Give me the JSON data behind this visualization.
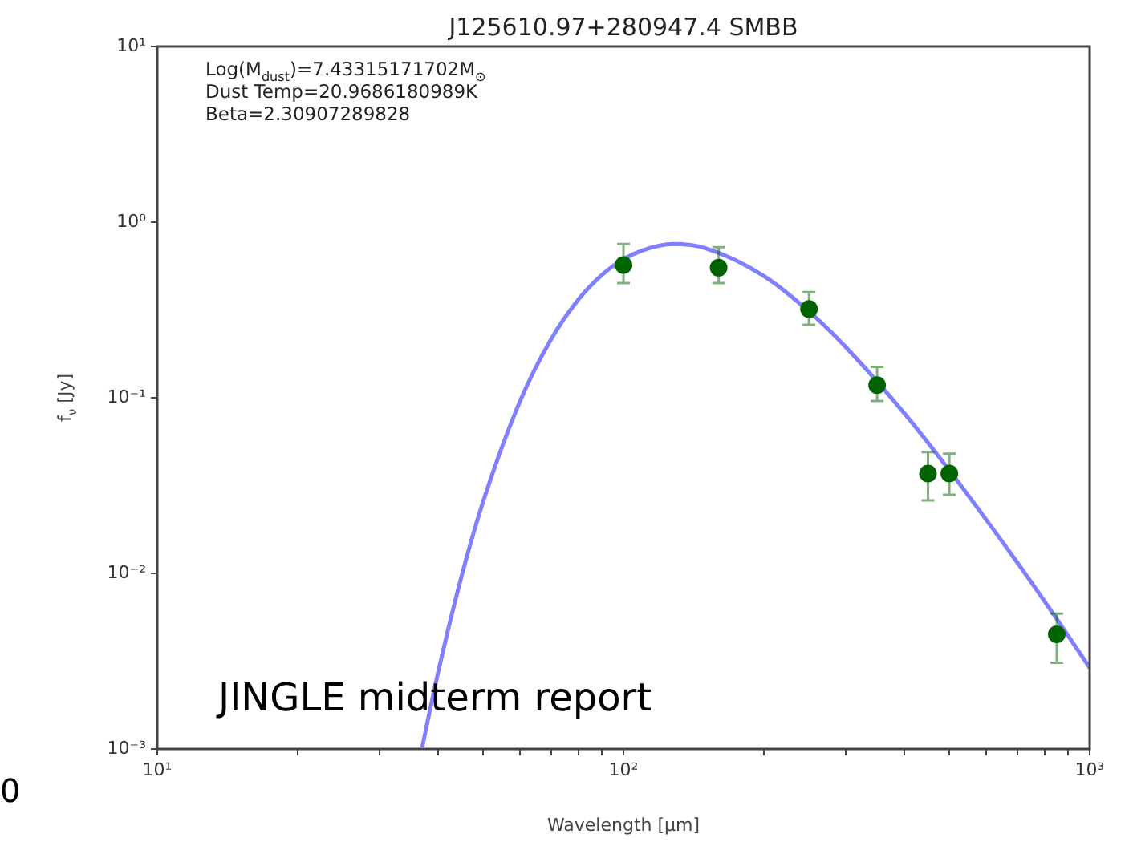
{
  "chart_data": {
    "type": "scatter",
    "title": "J125610.97+280947.4 SMBB",
    "xlabel": "Wavelength [μm]",
    "ylabel": "f$_{ν}$ [Jy]",
    "log": "xy",
    "xlim": [
      10,
      1000
    ],
    "ylim": [
      0.001,
      10
    ],
    "xticks": [
      {
        "value": 10,
        "label": "10¹"
      },
      {
        "value": 20,
        "label": null
      },
      {
        "value": 30,
        "label": null
      },
      {
        "value": 40,
        "label": null
      },
      {
        "value": 50,
        "label": null
      },
      {
        "value": 60,
        "label": null
      },
      {
        "value": 70,
        "label": null
      },
      {
        "value": 80,
        "label": null
      },
      {
        "value": 90,
        "label": null
      },
      {
        "value": 100,
        "label": "10²"
      },
      {
        "value": 200,
        "label": null
      },
      {
        "value": 300,
        "label": null
      },
      {
        "value": 400,
        "label": null
      },
      {
        "value": 500,
        "label": null
      },
      {
        "value": 600,
        "label": null
      },
      {
        "value": 700,
        "label": null
      },
      {
        "value": 800,
        "label": null
      },
      {
        "value": 900,
        "label": null
      },
      {
        "value": 1000,
        "label": "10³"
      }
    ],
    "yticks": [
      {
        "value": 0.001,
        "label": "10⁻³"
      },
      {
        "value": 0.01,
        "label": "10⁻²"
      },
      {
        "value": 0.1,
        "label": "10⁻¹"
      },
      {
        "value": 1,
        "label": "10⁰"
      },
      {
        "value": 10,
        "label": "10¹"
      }
    ],
    "grid": false,
    "legend": false,
    "annotations": [
      "Log(M$_{dust}$)=7.43315171702M$_{⊙}$",
      "Dust Temp=20.9686180989K",
      "Beta=2.30907289828",
      "JINGLE midterm report",
      "0"
    ],
    "series": [
      {
        "type": "line",
        "color": "#8080ff",
        "marker": "none",
        "x": [
          37,
          40,
          45,
          50,
          60,
          70,
          80,
          90,
          100,
          110,
          128,
          150,
          200,
          250,
          300,
          400,
          500,
          600,
          700,
          850,
          1000
        ],
        "values": [
          0.00102,
          0.0027,
          0.00975,
          0.0256,
          0.0957,
          0.216,
          0.362,
          0.502,
          0.615,
          0.692,
          0.75,
          0.71,
          0.494,
          0.31,
          0.194,
          0.0817,
          0.0386,
          0.0202,
          0.0115,
          0.0055,
          0.0029
        ]
      },
      {
        "type": "scatter",
        "color": "#006400",
        "marker": "circle",
        "x": [
          100,
          160,
          250,
          350,
          450,
          500,
          850
        ],
        "values": [
          0.57,
          0.55,
          0.32,
          0.118,
          0.037,
          0.037,
          0.0045
        ],
        "errors": [
          [
            0.45,
            0.75
          ],
          [
            0.45,
            0.72
          ],
          [
            0.26,
            0.4
          ],
          [
            0.096,
            0.15
          ],
          [
            0.026,
            0.049
          ],
          [
            0.028,
            0.048
          ],
          [
            0.0031,
            0.0059
          ]
        ]
      }
    ]
  }
}
